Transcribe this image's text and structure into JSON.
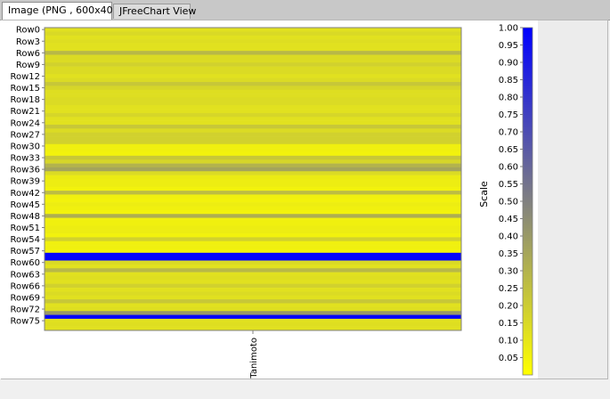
{
  "tabs": [
    {
      "label": "Image (PNG , 600x400)",
      "active": true
    },
    {
      "label": "JFreeChart View",
      "active": false
    }
  ],
  "colors": {
    "low": "#ffff00",
    "mid": "#808080",
    "high": "#0000ff"
  },
  "chart_data": {
    "type": "heatmap",
    "x_categories": [
      "Tanimoto"
    ],
    "y_tick_labels": [
      "Row0",
      "Row3",
      "Row6",
      "Row9",
      "Row12",
      "Row15",
      "Row18",
      "Row21",
      "Row24",
      "Row27",
      "Row30",
      "Row33",
      "Row36",
      "Row39",
      "Row42",
      "Row45",
      "Row48",
      "Row51",
      "Row54",
      "Row57",
      "Row60",
      "Row63",
      "Row66",
      "Row69",
      "Row72",
      "Row75"
    ],
    "row_count": 78,
    "values": [
      0.12,
      0.15,
      0.12,
      0.13,
      0.12,
      0.12,
      0.28,
      0.14,
      0.14,
      0.18,
      0.14,
      0.14,
      0.12,
      0.14,
      0.22,
      0.16,
      0.13,
      0.13,
      0.14,
      0.14,
      0.12,
      0.12,
      0.16,
      0.12,
      0.12,
      0.22,
      0.14,
      0.18,
      0.18,
      0.18,
      0.06,
      0.06,
      0.05,
      0.22,
      0.16,
      0.3,
      0.36,
      0.14,
      0.08,
      0.07,
      0.07,
      0.05,
      0.26,
      0.06,
      0.05,
      0.07,
      0.06,
      0.05,
      0.32,
      0.06,
      0.06,
      0.07,
      0.07,
      0.05,
      0.18,
      0.06,
      0.06,
      0.05,
      0.98,
      0.98,
      0.15,
      0.12,
      0.28,
      0.12,
      0.13,
      0.12,
      0.18,
      0.12,
      0.14,
      0.12,
      0.22,
      0.12,
      0.13,
      0.4,
      0.98,
      0.12,
      0.13,
      0.12
    ],
    "scale": {
      "title": "Scale",
      "min": 0.0,
      "max": 1.0,
      "tick_labels": [
        "1.00",
        "0.95",
        "0.90",
        "0.85",
        "0.80",
        "0.75",
        "0.70",
        "0.65",
        "0.60",
        "0.55",
        "0.50",
        "0.45",
        "0.40",
        "0.35",
        "0.30",
        "0.25",
        "0.20",
        "0.15",
        "0.10",
        "0.05"
      ]
    }
  }
}
